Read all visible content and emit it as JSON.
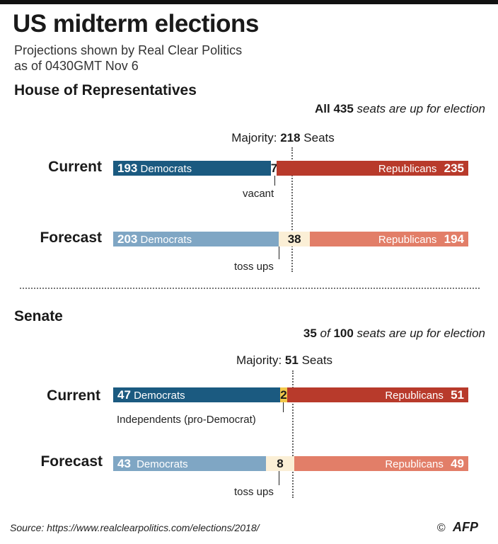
{
  "title": "US midterm elections",
  "subtitle_line1": "Projections shown by Real Clear Politics",
  "subtitle_line2": "as of 0430GMT Nov 6",
  "house": {
    "heading": "House of Representatives",
    "seats_note": {
      "pre": "All",
      "num": "435",
      "post": "seats are up for election"
    },
    "majority": {
      "prefix": "Majority:",
      "num": "218",
      "suffix": "Seats"
    }
  },
  "senate": {
    "heading": "Senate",
    "seats_note": {
      "num1": "35",
      "of": "of",
      "num2": "100",
      "post": "seats are up for election"
    },
    "majority": {
      "prefix": "Majority:",
      "num": "51",
      "suffix": "Seats"
    }
  },
  "chart_data": [
    {
      "type": "bar",
      "chamber": "House of Representatives",
      "total_seats": 435,
      "majority": 218,
      "rows": [
        {
          "label": "Current",
          "democrats": 193,
          "middle": 7,
          "middle_label": "vacant",
          "republicans": 235,
          "dem_name": "Democrats",
          "rep_name": "Republicans"
        },
        {
          "label": "Forecast",
          "democrats": 203,
          "middle": 38,
          "middle_label": "toss ups",
          "republicans": 194,
          "dem_name": "Democrats",
          "rep_name": "Republicans"
        }
      ]
    },
    {
      "type": "bar",
      "chamber": "Senate",
      "total_seats": 100,
      "majority": 51,
      "rows": [
        {
          "label": "Current",
          "democrats": 47,
          "middle": 2,
          "middle_label": "Independents (pro-Democrat)",
          "republicans": 51,
          "dem_name": "Democrats",
          "rep_name": "Republicans"
        },
        {
          "label": "Forecast",
          "democrats": 43,
          "middle": 8,
          "middle_label": "toss ups",
          "republicans": 49,
          "dem_name": "Democrats",
          "rep_name": "Republicans"
        }
      ]
    }
  ],
  "colors": {
    "dem_current": "#1b5a80",
    "rep_current": "#b83a2b",
    "dem_forecast": "#7fa6c4",
    "rep_forecast": "#e27e68",
    "middle_current": "#ffffff",
    "middle_forecast": "#fbefd6",
    "independent": "#f2c84b"
  },
  "source": "Source: https://www.realclearpolitics.com/elections/2018/",
  "credit_symbol": "©",
  "credit": "AFP"
}
